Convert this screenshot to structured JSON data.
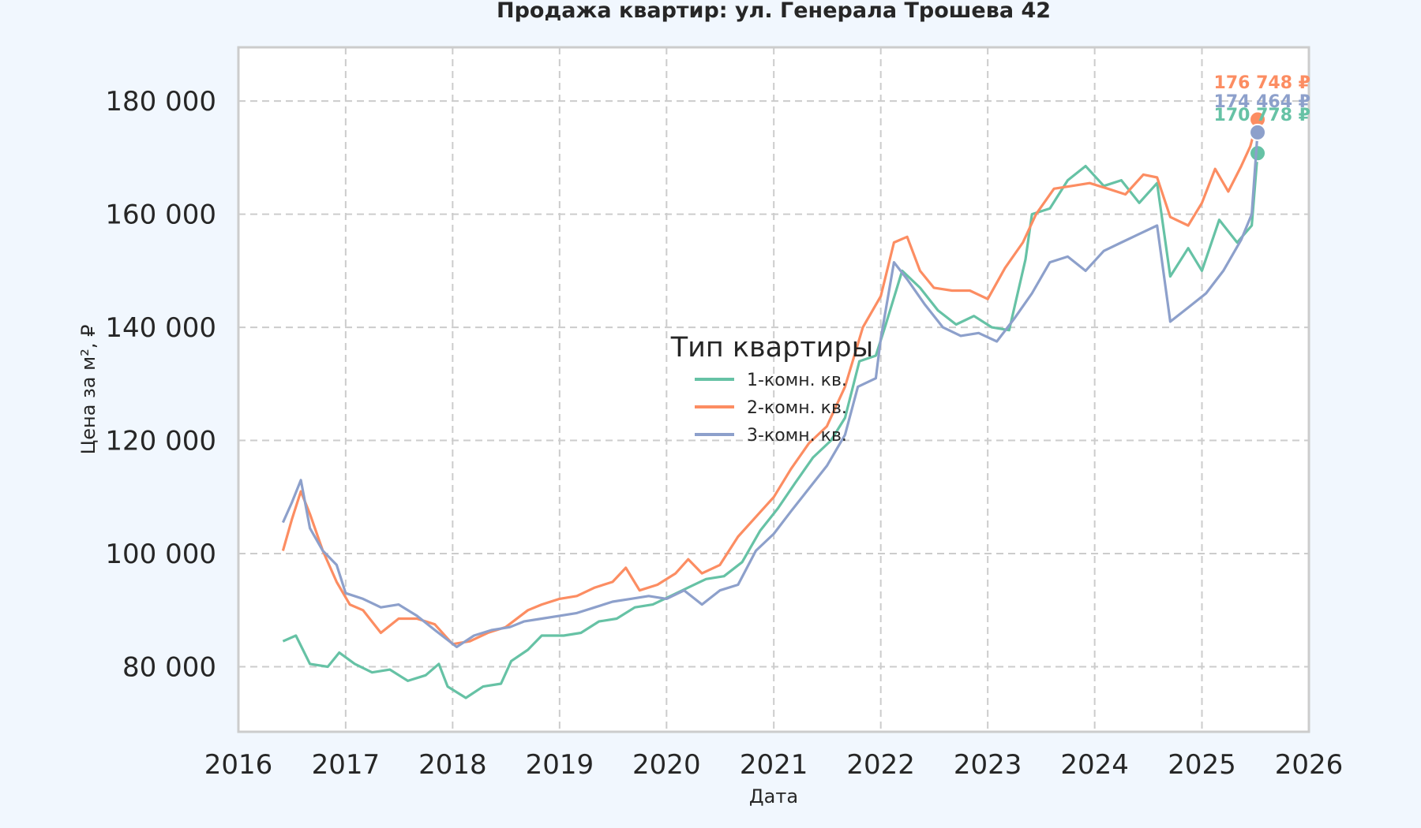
{
  "chart_data": {
    "type": "line",
    "title": "Продажа квартир: ул. Генерала Трошева 42",
    "xlabel": "Дата",
    "ylabel": "Цена за м², ₽",
    "xlim": [
      "2016-01-01",
      "2026-01-01"
    ],
    "ylim": [
      68500,
      189500
    ],
    "x_ticks": [
      "2016",
      "2017",
      "2018",
      "2019",
      "2020",
      "2021",
      "2022",
      "2023",
      "2024",
      "2025",
      "2026"
    ],
    "y_ticks": [
      80000,
      100000,
      120000,
      140000,
      160000,
      180000
    ],
    "y_tick_labels": [
      "80 000",
      "100 000",
      "120 000",
      "140 000",
      "160 000",
      "180 000"
    ],
    "grid": true,
    "legend": {
      "title": "Тип квартиры",
      "position": "center"
    },
    "colors": {
      "background": "#f1f7fe",
      "plot_background": "#ffffff",
      "grid": "#cccccc",
      "frame": "#cccccc"
    },
    "series": [
      {
        "name": "1-комн. кв.",
        "color": "#66c2a5",
        "end_label": "170 778 ₽",
        "end_value": 170778,
        "points": [
          [
            "2016-06-01",
            84500
          ],
          [
            "2016-07-15",
            85500
          ],
          [
            "2016-09-01",
            80500
          ],
          [
            "2016-11-01",
            80000
          ],
          [
            "2016-12-10",
            82500
          ],
          [
            "2017-02-01",
            80500
          ],
          [
            "2017-04-01",
            79000
          ],
          [
            "2017-06-01",
            79500
          ],
          [
            "2017-08-01",
            77500
          ],
          [
            "2017-10-01",
            78500
          ],
          [
            "2017-11-15",
            80500
          ],
          [
            "2017-12-15",
            76500
          ],
          [
            "2018-02-15",
            74500
          ],
          [
            "2018-04-15",
            76500
          ],
          [
            "2018-06-15",
            77000
          ],
          [
            "2018-07-20",
            81000
          ],
          [
            "2018-09-15",
            83000
          ],
          [
            "2018-11-01",
            85500
          ],
          [
            "2019-01-15",
            85500
          ],
          [
            "2019-03-15",
            86000
          ],
          [
            "2019-05-15",
            88000
          ],
          [
            "2019-07-15",
            88500
          ],
          [
            "2019-09-15",
            90500
          ],
          [
            "2019-11-15",
            91000
          ],
          [
            "2020-01-15",
            92500
          ],
          [
            "2020-03-15",
            94000
          ],
          [
            "2020-05-15",
            95500
          ],
          [
            "2020-07-15",
            96000
          ],
          [
            "2020-09-15",
            98500
          ],
          [
            "2020-11-15",
            104000
          ],
          [
            "2021-01-15",
            108000
          ],
          [
            "2021-03-15",
            112500
          ],
          [
            "2021-05-15",
            117000
          ],
          [
            "2021-07-15",
            120000
          ],
          [
            "2021-09-01",
            124000
          ],
          [
            "2021-10-20",
            134000
          ],
          [
            "2021-12-15",
            135000
          ],
          [
            "2022-01-15",
            140000
          ],
          [
            "2022-03-15",
            150000
          ],
          [
            "2022-05-15",
            147000
          ],
          [
            "2022-07-15",
            143000
          ],
          [
            "2022-09-15",
            140500
          ],
          [
            "2022-11-15",
            142000
          ],
          [
            "2023-01-15",
            140000
          ],
          [
            "2023-03-15",
            139500
          ],
          [
            "2023-05-10",
            152000
          ],
          [
            "2023-06-01",
            160000
          ],
          [
            "2023-08-01",
            161000
          ],
          [
            "2023-10-01",
            166000
          ],
          [
            "2023-12-01",
            168500
          ],
          [
            "2024-02-01",
            165000
          ],
          [
            "2024-04-01",
            166000
          ],
          [
            "2024-06-01",
            162000
          ],
          [
            "2024-08-01",
            165500
          ],
          [
            "2024-09-15",
            149000
          ],
          [
            "2024-11-15",
            154000
          ],
          [
            "2025-01-01",
            150000
          ],
          [
            "2025-03-01",
            159000
          ],
          [
            "2025-05-01",
            155000
          ],
          [
            "2025-06-20",
            158000
          ],
          [
            "2025-07-10",
            170778
          ]
        ]
      },
      {
        "name": "2-комн. кв.",
        "color": "#fc8d62",
        "end_label": "176 748 ₽",
        "end_value": 176748,
        "points": [
          [
            "2016-06-01",
            100500
          ],
          [
            "2016-07-01",
            106000
          ],
          [
            "2016-08-01",
            111000
          ],
          [
            "2016-09-01",
            107000
          ],
          [
            "2016-10-15",
            100500
          ],
          [
            "2016-12-01",
            95000
          ],
          [
            "2017-01-15",
            91000
          ],
          [
            "2017-03-01",
            90000
          ],
          [
            "2017-05-01",
            86000
          ],
          [
            "2017-07-01",
            88500
          ],
          [
            "2017-09-01",
            88500
          ],
          [
            "2017-11-01",
            87500
          ],
          [
            "2018-01-01",
            84000
          ],
          [
            "2018-03-01",
            84500
          ],
          [
            "2018-05-01",
            86000
          ],
          [
            "2018-07-01",
            87000
          ],
          [
            "2018-09-15",
            90000
          ],
          [
            "2018-11-01",
            91000
          ],
          [
            "2019-01-01",
            92000
          ],
          [
            "2019-03-01",
            92500
          ],
          [
            "2019-05-01",
            94000
          ],
          [
            "2019-07-01",
            95000
          ],
          [
            "2019-08-15",
            97500
          ],
          [
            "2019-10-01",
            93500
          ],
          [
            "2019-12-01",
            94500
          ],
          [
            "2020-02-01",
            96500
          ],
          [
            "2020-03-15",
            99000
          ],
          [
            "2020-05-01",
            96500
          ],
          [
            "2020-07-01",
            98000
          ],
          [
            "2020-09-01",
            103000
          ],
          [
            "2020-11-01",
            106500
          ],
          [
            "2021-01-01",
            110000
          ],
          [
            "2021-03-01",
            115000
          ],
          [
            "2021-05-01",
            119500
          ],
          [
            "2021-07-01",
            122500
          ],
          [
            "2021-09-01",
            129500
          ],
          [
            "2021-11-01",
            140000
          ],
          [
            "2022-01-01",
            145500
          ],
          [
            "2022-02-15",
            155000
          ],
          [
            "2022-04-01",
            156000
          ],
          [
            "2022-05-15",
            150000
          ],
          [
            "2022-07-01",
            147000
          ],
          [
            "2022-09-01",
            146500
          ],
          [
            "2022-11-01",
            146500
          ],
          [
            "2023-01-01",
            145000
          ],
          [
            "2023-03-01",
            150500
          ],
          [
            "2023-05-01",
            155000
          ],
          [
            "2023-06-15",
            160000
          ],
          [
            "2023-08-15",
            164500
          ],
          [
            "2023-10-15",
            165000
          ],
          [
            "2023-12-15",
            165500
          ],
          [
            "2024-02-15",
            164500
          ],
          [
            "2024-04-15",
            163500
          ],
          [
            "2024-06-15",
            167000
          ],
          [
            "2024-08-01",
            166500
          ],
          [
            "2024-09-15",
            159500
          ],
          [
            "2024-11-15",
            158000
          ],
          [
            "2025-01-01",
            162000
          ],
          [
            "2025-02-15",
            168000
          ],
          [
            "2025-04-01",
            164000
          ],
          [
            "2025-05-15",
            168500
          ],
          [
            "2025-06-15",
            172000
          ],
          [
            "2025-07-10",
            176748
          ]
        ]
      },
      {
        "name": "3-комн. кв.",
        "color": "#8da0cb",
        "end_label": "174 464 ₽",
        "end_value": 174464,
        "points": [
          [
            "2016-06-01",
            105500
          ],
          [
            "2016-07-01",
            109000
          ],
          [
            "2016-08-01",
            113000
          ],
          [
            "2016-09-01",
            104500
          ],
          [
            "2016-10-15",
            100500
          ],
          [
            "2016-12-01",
            98000
          ],
          [
            "2017-01-01",
            93000
          ],
          [
            "2017-03-01",
            92000
          ],
          [
            "2017-05-01",
            90500
          ],
          [
            "2017-07-01",
            91000
          ],
          [
            "2017-09-01",
            89000
          ],
          [
            "2017-11-01",
            86500
          ],
          [
            "2018-01-15",
            83500
          ],
          [
            "2018-03-15",
            85500
          ],
          [
            "2018-05-15",
            86500
          ],
          [
            "2018-07-15",
            87000
          ],
          [
            "2018-09-01",
            88000
          ],
          [
            "2018-11-01",
            88500
          ],
          [
            "2019-01-01",
            89000
          ],
          [
            "2019-03-01",
            89500
          ],
          [
            "2019-05-01",
            90500
          ],
          [
            "2019-07-01",
            91500
          ],
          [
            "2019-09-01",
            92000
          ],
          [
            "2019-11-01",
            92500
          ],
          [
            "2020-01-01",
            92000
          ],
          [
            "2020-03-01",
            93500
          ],
          [
            "2020-05-01",
            91000
          ],
          [
            "2020-07-01",
            93500
          ],
          [
            "2020-09-01",
            94500
          ],
          [
            "2020-11-01",
            100500
          ],
          [
            "2021-01-01",
            103500
          ],
          [
            "2021-03-01",
            107500
          ],
          [
            "2021-05-01",
            111500
          ],
          [
            "2021-07-01",
            115500
          ],
          [
            "2021-09-01",
            121000
          ],
          [
            "2021-10-15",
            129500
          ],
          [
            "2021-12-15",
            131000
          ],
          [
            "2022-01-01",
            138000
          ],
          [
            "2022-02-15",
            151500
          ],
          [
            "2022-04-01",
            148500
          ],
          [
            "2022-06-01",
            144000
          ],
          [
            "2022-08-01",
            140000
          ],
          [
            "2022-10-01",
            138500
          ],
          [
            "2022-12-01",
            139000
          ],
          [
            "2023-02-01",
            137500
          ],
          [
            "2023-04-01",
            141500
          ],
          [
            "2023-06-01",
            146000
          ],
          [
            "2023-08-01",
            151500
          ],
          [
            "2023-10-01",
            152500
          ],
          [
            "2023-12-01",
            150000
          ],
          [
            "2024-02-01",
            153500
          ],
          [
            "2024-04-01",
            155000
          ],
          [
            "2024-06-01",
            156500
          ],
          [
            "2024-08-01",
            158000
          ],
          [
            "2024-09-15",
            141000
          ],
          [
            "2024-11-15",
            143500
          ],
          [
            "2025-01-15",
            146000
          ],
          [
            "2025-03-15",
            150000
          ],
          [
            "2025-05-15",
            155500
          ],
          [
            "2025-06-20",
            160000
          ],
          [
            "2025-07-10",
            174464
          ]
        ]
      }
    ]
  }
}
